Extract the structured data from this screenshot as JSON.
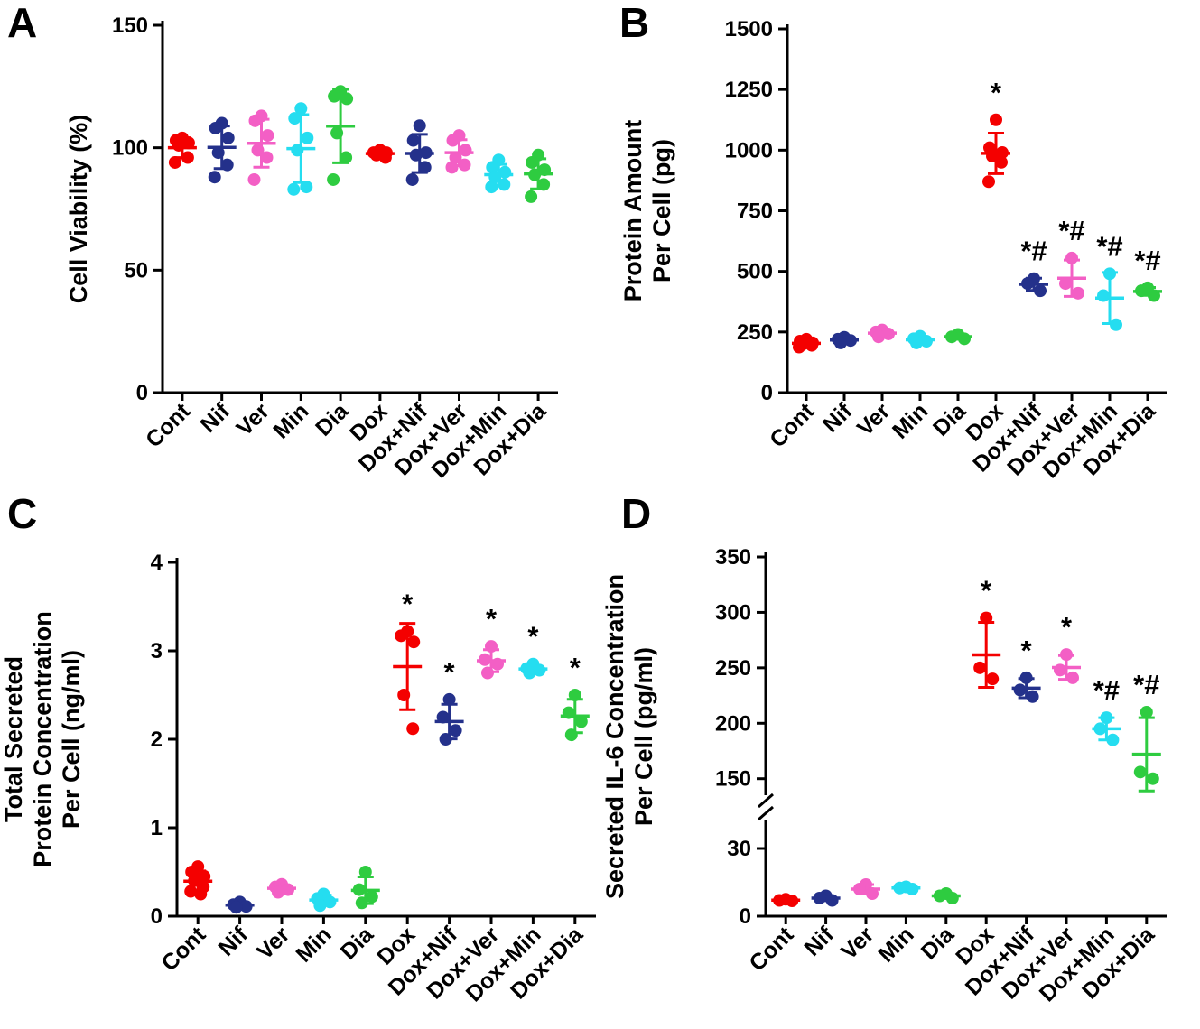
{
  "figure": {
    "background": "#ffffff",
    "colors": {
      "red": "#F40000",
      "navy": "#24318B",
      "pink": "#F35FC5",
      "cyan": "#25DDF0",
      "green": "#2ECC40"
    }
  },
  "chart_data": [
    {
      "id": "A",
      "panel_letter": "A",
      "type": "scatter",
      "ylabel": "Cell Viability (%)",
      "ylabel_lines": [
        "Cell Viability (%)"
      ],
      "xlabel": "",
      "ylim": [
        0,
        150
      ],
      "yticks": [
        0,
        50,
        100,
        150
      ],
      "categories": [
        "Cont",
        "Nif",
        "Ver",
        "Min",
        "Dia",
        "Dox",
        "Dox+Nif",
        "Dox+Ver",
        "Dox+Min",
        "Dox+Dia"
      ],
      "series": [
        {
          "label": "Cont",
          "color": "red",
          "annotation": "",
          "values": [
            104,
            103,
            102,
            101,
            96,
            94
          ]
        },
        {
          "label": "Nif",
          "color": "navy",
          "annotation": "",
          "values": [
            110,
            108,
            104,
            98,
            93,
            88
          ]
        },
        {
          "label": "Ver",
          "color": "pink",
          "annotation": "",
          "values": [
            113,
            111,
            105,
            99,
            96,
            87
          ]
        },
        {
          "label": "Min",
          "color": "cyan",
          "annotation": "",
          "values": [
            116,
            112,
            104,
            99,
            84,
            83
          ]
        },
        {
          "label": "Dia",
          "color": "green",
          "annotation": "",
          "values": [
            123,
            121,
            120,
            106,
            96,
            87
          ]
        },
        {
          "label": "Dox",
          "color": "red",
          "annotation": "",
          "values": [
            99,
            98,
            98,
            97,
            96
          ]
        },
        {
          "label": "Dox+Nif",
          "color": "navy",
          "annotation": "",
          "values": [
            109,
            103,
            98,
            97,
            92,
            87
          ]
        },
        {
          "label": "Dox+Ver",
          "color": "pink",
          "annotation": "",
          "values": [
            105,
            103,
            99,
            96,
            93,
            92
          ]
        },
        {
          "label": "Dox+Min",
          "color": "cyan",
          "annotation": "",
          "values": [
            95,
            92,
            90,
            88,
            85,
            84
          ]
        },
        {
          "label": "Dox+Dia",
          "color": "green",
          "annotation": "",
          "values": [
            97,
            94,
            91,
            89,
            85,
            80
          ]
        }
      ]
    },
    {
      "id": "B",
      "panel_letter": "B",
      "type": "scatter",
      "ylabel": "Protein Amount Per Cell (pg)",
      "ylabel_lines": [
        "Protein Amount",
        "Per Cell (pg)"
      ],
      "xlabel": "",
      "ylim": [
        0,
        1500
      ],
      "yticks": [
        0,
        250,
        500,
        750,
        1000,
        1250,
        1500
      ],
      "categories": [
        "Cont",
        "Nif",
        "Ver",
        "Min",
        "Dia",
        "Dox",
        "Dox+Nif",
        "Dox+Ver",
        "Dox+Min",
        "Dox+Dia"
      ],
      "series": [
        {
          "label": "Cont",
          "color": "red",
          "annotation": "",
          "values": [
            220,
            212,
            205,
            200,
            195,
            188
          ]
        },
        {
          "label": "Nif",
          "color": "navy",
          "annotation": "",
          "values": [
            228,
            220,
            215,
            205
          ]
        },
        {
          "label": "Ver",
          "color": "pink",
          "annotation": "",
          "values": [
            258,
            250,
            242,
            230
          ]
        },
        {
          "label": "Min",
          "color": "cyan",
          "annotation": "",
          "values": [
            232,
            222,
            212,
            205
          ]
        },
        {
          "label": "Dia",
          "color": "green",
          "annotation": "",
          "values": [
            240,
            230,
            222
          ]
        },
        {
          "label": "Dox",
          "color": "red",
          "annotation": "*",
          "values": [
            1125,
            1010,
            990,
            975,
            950,
            870
          ]
        },
        {
          "label": "Dox+Nif",
          "color": "navy",
          "annotation": "*#",
          "values": [
            470,
            450,
            420
          ]
        },
        {
          "label": "Dox+Ver",
          "color": "pink",
          "annotation": "*#",
          "values": [
            555,
            450,
            410
          ]
        },
        {
          "label": "Dox+Min",
          "color": "cyan",
          "annotation": "*#",
          "values": [
            490,
            400,
            280
          ]
        },
        {
          "label": "Dox+Dia",
          "color": "green",
          "annotation": "*#",
          "values": [
            432,
            420,
            400
          ]
        }
      ]
    },
    {
      "id": "C",
      "panel_letter": "C",
      "type": "scatter",
      "ylabel": "Total Secreted Protein Concentration Per Cell (ng/ml)",
      "ylabel_lines": [
        "Total Secreted",
        "Protein Concentration",
        "Per Cell (ng/ml)"
      ],
      "xlabel": "",
      "ylim": [
        0,
        4
      ],
      "yticks": [
        0,
        1,
        2,
        3,
        4
      ],
      "categories": [
        "Cont",
        "Nif",
        "Ver",
        "Min",
        "Dia",
        "Dox",
        "Dox+Nif",
        "Dox+Ver",
        "Dox+Min",
        "Dox+Dia"
      ],
      "series": [
        {
          "label": "Cont",
          "color": "red",
          "annotation": "",
          "values": [
            0.56,
            0.5,
            0.45,
            0.4,
            0.33,
            0.28,
            0.25
          ]
        },
        {
          "label": "Nif",
          "color": "navy",
          "annotation": "",
          "values": [
            0.16,
            0.13,
            0.11,
            0.1
          ]
        },
        {
          "label": "Ver",
          "color": "pink",
          "annotation": "",
          "values": [
            0.36,
            0.33,
            0.3,
            0.27
          ]
        },
        {
          "label": "Min",
          "color": "cyan",
          "annotation": "",
          "values": [
            0.25,
            0.2,
            0.16,
            0.12
          ]
        },
        {
          "label": "Dia",
          "color": "green",
          "annotation": "",
          "values": [
            0.5,
            0.3,
            0.22,
            0.15
          ]
        },
        {
          "label": "Dox",
          "color": "red",
          "annotation": "*",
          "values": [
            3.22,
            3.17,
            3.1,
            2.5,
            2.12
          ]
        },
        {
          "label": "Dox+Nif",
          "color": "navy",
          "annotation": "*",
          "values": [
            2.45,
            2.25,
            2.1,
            2.0
          ]
        },
        {
          "label": "Dox+Ver",
          "color": "pink",
          "annotation": "*",
          "values": [
            3.05,
            2.9,
            2.85,
            2.75
          ]
        },
        {
          "label": "Dox+Min",
          "color": "cyan",
          "annotation": "*",
          "values": [
            2.85,
            2.8,
            2.78,
            2.75
          ]
        },
        {
          "label": "Dox+Dia",
          "color": "green",
          "annotation": "*",
          "values": [
            2.5,
            2.3,
            2.2,
            2.05
          ]
        }
      ]
    },
    {
      "id": "D",
      "panel_letter": "D",
      "type": "scatter",
      "ylabel": "Secreted IL-6 Concentration Per Cell (pg/ml)",
      "ylabel_lines": [
        "Secreted IL-6 Concentration",
        "Per Cell (pg/ml)"
      ],
      "xlabel": "",
      "ylim": [
        0,
        350
      ],
      "yticks": [
        0,
        30,
        150,
        200,
        250,
        300,
        350
      ],
      "ybreak": {
        "lower": [
          0,
          40
        ],
        "upper": [
          140,
          350
        ],
        "lower_ticks": [
          0,
          30
        ],
        "upper_ticks": [
          150,
          200,
          250,
          300,
          350
        ]
      },
      "categories": [
        "Cont",
        "Nif",
        "Ver",
        "Min",
        "Dia",
        "Dox",
        "Dox+Nif",
        "Dox+Ver",
        "Dox+Min",
        "Dox+Dia"
      ],
      "series": [
        {
          "label": "Cont",
          "color": "red",
          "annotation": "",
          "values": [
            7.5,
            7,
            6.8
          ]
        },
        {
          "label": "Nif",
          "color": "navy",
          "annotation": "",
          "values": [
            9,
            8,
            7
          ]
        },
        {
          "label": "Ver",
          "color": "pink",
          "annotation": "",
          "values": [
            14,
            12,
            10
          ]
        },
        {
          "label": "Min",
          "color": "cyan",
          "annotation": "",
          "values": [
            13,
            12.5,
            12
          ]
        },
        {
          "label": "Dia",
          "color": "green",
          "annotation": "",
          "values": [
            10,
            9,
            8
          ]
        },
        {
          "label": "Dox",
          "color": "red",
          "annotation": "*",
          "values": [
            295,
            250,
            240
          ]
        },
        {
          "label": "Dox+Nif",
          "color": "navy",
          "annotation": "*",
          "values": [
            241,
            230,
            224
          ]
        },
        {
          "label": "Dox+Ver",
          "color": "pink",
          "annotation": "*",
          "values": [
            262,
            248,
            241
          ]
        },
        {
          "label": "Dox+Min",
          "color": "cyan",
          "annotation": "*#",
          "values": [
            205,
            195,
            185
          ]
        },
        {
          "label": "Dox+Dia",
          "color": "green",
          "annotation": "*#",
          "values": [
            210,
            156,
            150
          ]
        }
      ]
    }
  ]
}
